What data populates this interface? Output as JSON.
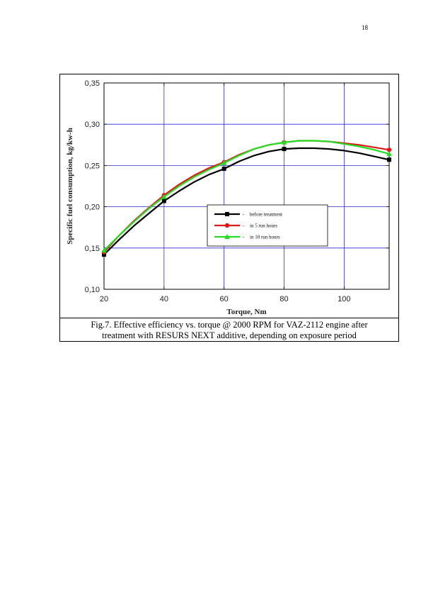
{
  "page": {
    "number": "18"
  },
  "caption": {
    "line1": "Fig.7. Effective efficiency vs. torque @ 2000 RPM for VAZ-2112 engine after",
    "line2": "treatment with RESURS NEXT additive, depending on exposure period"
  },
  "chart_data": {
    "type": "line",
    "title": "",
    "xlabel": "Torque, Nm",
    "ylabel": "Specific fuel consumption, kg/kw-h",
    "xlim": [
      20,
      115
    ],
    "ylim": [
      0.1,
      0.35
    ],
    "xticks": [
      20,
      40,
      60,
      80,
      100
    ],
    "yticks": [
      0.1,
      0.15,
      0.2,
      0.25,
      0.3,
      0.35
    ],
    "ytick_labels": [
      "0,10",
      "0,15",
      "0,20",
      "0,25",
      "0,30",
      "0,35"
    ],
    "xtick_labels": [
      "20",
      "40",
      "60",
      "80",
      "100"
    ],
    "grid": true,
    "legend_position": "center-right",
    "series": [
      {
        "name": "before treatment",
        "marker": "square",
        "color": "#000000",
        "points_x": [
          20,
          40,
          60,
          80,
          115
        ],
        "points_y": [
          0.142,
          0.207,
          0.246,
          0.27,
          0.257
        ],
        "curve_x": [
          20,
          25,
          30,
          35,
          40,
          45,
          50,
          55,
          60,
          65,
          70,
          75,
          80,
          85,
          90,
          95,
          100,
          105,
          110,
          115
        ],
        "curve_y": [
          0.142,
          0.16,
          0.177,
          0.192,
          0.207,
          0.219,
          0.23,
          0.239,
          0.246,
          0.255,
          0.262,
          0.267,
          0.27,
          0.271,
          0.271,
          0.27,
          0.268,
          0.265,
          0.261,
          0.257
        ]
      },
      {
        "name": "in 5 run hours",
        "marker": "circle",
        "color": "#e01818",
        "points_x": [
          20,
          40,
          60,
          80,
          115
        ],
        "points_y": [
          0.145,
          0.214,
          0.254,
          0.278,
          0.269
        ],
        "curve_x": [
          20,
          25,
          30,
          35,
          40,
          45,
          50,
          55,
          60,
          65,
          70,
          75,
          80,
          85,
          90,
          95,
          100,
          105,
          110,
          115
        ],
        "curve_y": [
          0.145,
          0.165,
          0.183,
          0.199,
          0.214,
          0.227,
          0.238,
          0.247,
          0.254,
          0.263,
          0.27,
          0.275,
          0.278,
          0.28,
          0.28,
          0.279,
          0.277,
          0.275,
          0.272,
          0.269
        ]
      },
      {
        "name": "in 10 run hours",
        "marker": "triangle",
        "color": "#22dd22",
        "points_x": [
          20,
          40,
          60,
          80,
          115
        ],
        "points_y": [
          0.147,
          0.212,
          0.253,
          0.278,
          0.264
        ],
        "curve_x": [
          20,
          25,
          30,
          35,
          40,
          45,
          50,
          55,
          60,
          65,
          70,
          75,
          80,
          85,
          90,
          95,
          100,
          105,
          110,
          115
        ],
        "curve_y": [
          0.147,
          0.165,
          0.182,
          0.198,
          0.212,
          0.225,
          0.236,
          0.245,
          0.253,
          0.262,
          0.27,
          0.275,
          0.278,
          0.28,
          0.28,
          0.279,
          0.276,
          0.273,
          0.269,
          0.264
        ]
      }
    ]
  }
}
